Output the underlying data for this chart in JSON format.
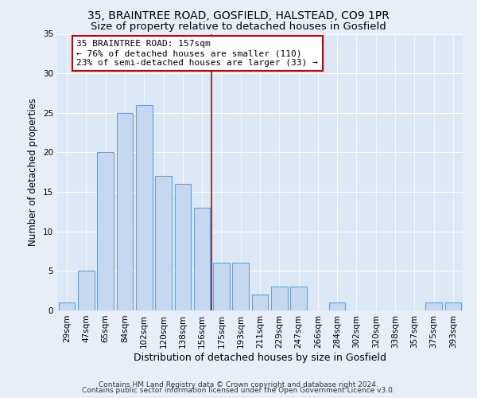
{
  "title": "35, BRAINTREE ROAD, GOSFIELD, HALSTEAD, CO9 1PR",
  "subtitle": "Size of property relative to detached houses in Gosfield",
  "xlabel": "Distribution of detached houses by size in Gosfield",
  "ylabel": "Number of detached properties",
  "bar_labels": [
    "29sqm",
    "47sqm",
    "65sqm",
    "84sqm",
    "102sqm",
    "120sqm",
    "138sqm",
    "156sqm",
    "175sqm",
    "193sqm",
    "211sqm",
    "229sqm",
    "247sqm",
    "266sqm",
    "284sqm",
    "302sqm",
    "320sqm",
    "338sqm",
    "357sqm",
    "375sqm",
    "393sqm"
  ],
  "bar_values": [
    1,
    5,
    20,
    25,
    26,
    17,
    16,
    13,
    6,
    6,
    2,
    3,
    3,
    0,
    1,
    0,
    0,
    0,
    0,
    1,
    1
  ],
  "bar_color": "#c5d8f0",
  "bar_edge_color": "#6a9fd8",
  "ylim": [
    0,
    35
  ],
  "yticks": [
    0,
    5,
    10,
    15,
    20,
    25,
    30,
    35
  ],
  "vline_index": 7.5,
  "vline_color": "#8b1a1a",
  "annotation_title": "35 BRAINTREE ROAD: 157sqm",
  "annotation_line1": "← 76% of detached houses are smaller (110)",
  "annotation_line2": "23% of semi-detached houses are larger (33) →",
  "annotation_box_color": "#ffffff",
  "annotation_border_color": "#cc0000",
  "footer1": "Contains HM Land Registry data © Crown copyright and database right 2024.",
  "footer2": "Contains public sector information licensed under the Open Government Licence v3.0.",
  "bg_color": "#e8eef7",
  "plot_bg_color": "#dce8f5",
  "title_fontsize": 10,
  "subtitle_fontsize": 9.5,
  "tick_fontsize": 7.5,
  "ylabel_fontsize": 8.5,
  "xlabel_fontsize": 9,
  "annotation_fontsize": 8,
  "footer_fontsize": 6.5
}
